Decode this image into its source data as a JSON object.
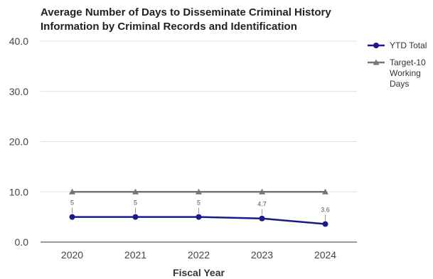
{
  "chart_data": {
    "type": "line",
    "title": "Average Number of Days to Disseminate Criminal History Information by Criminal Records and Identification",
    "xlabel": "Fiscal Year",
    "ylabel": "",
    "categories": [
      "2020",
      "2021",
      "2022",
      "2023",
      "2024"
    ],
    "ylim": [
      0,
      40
    ],
    "yticks": [
      "0.0",
      "10.0",
      "20.0",
      "30.0",
      "40.0"
    ],
    "grid": true,
    "legend_position": "right",
    "series": [
      {
        "name": "YTD Total",
        "values": [
          5,
          5,
          5,
          4.7,
          3.6
        ],
        "labels": [
          "5",
          "5",
          "5",
          "4.7",
          "3.6"
        ],
        "color": "#1a1a8c",
        "marker": "circle"
      },
      {
        "name": "Target-10 Working Days",
        "values": [
          10,
          10,
          10,
          10,
          10
        ],
        "color": "#757575",
        "marker": "triangle"
      }
    ],
    "legend_lines": [
      [
        "YTD Total"
      ],
      [
        "Target-10",
        "Working",
        "Days"
      ]
    ]
  }
}
